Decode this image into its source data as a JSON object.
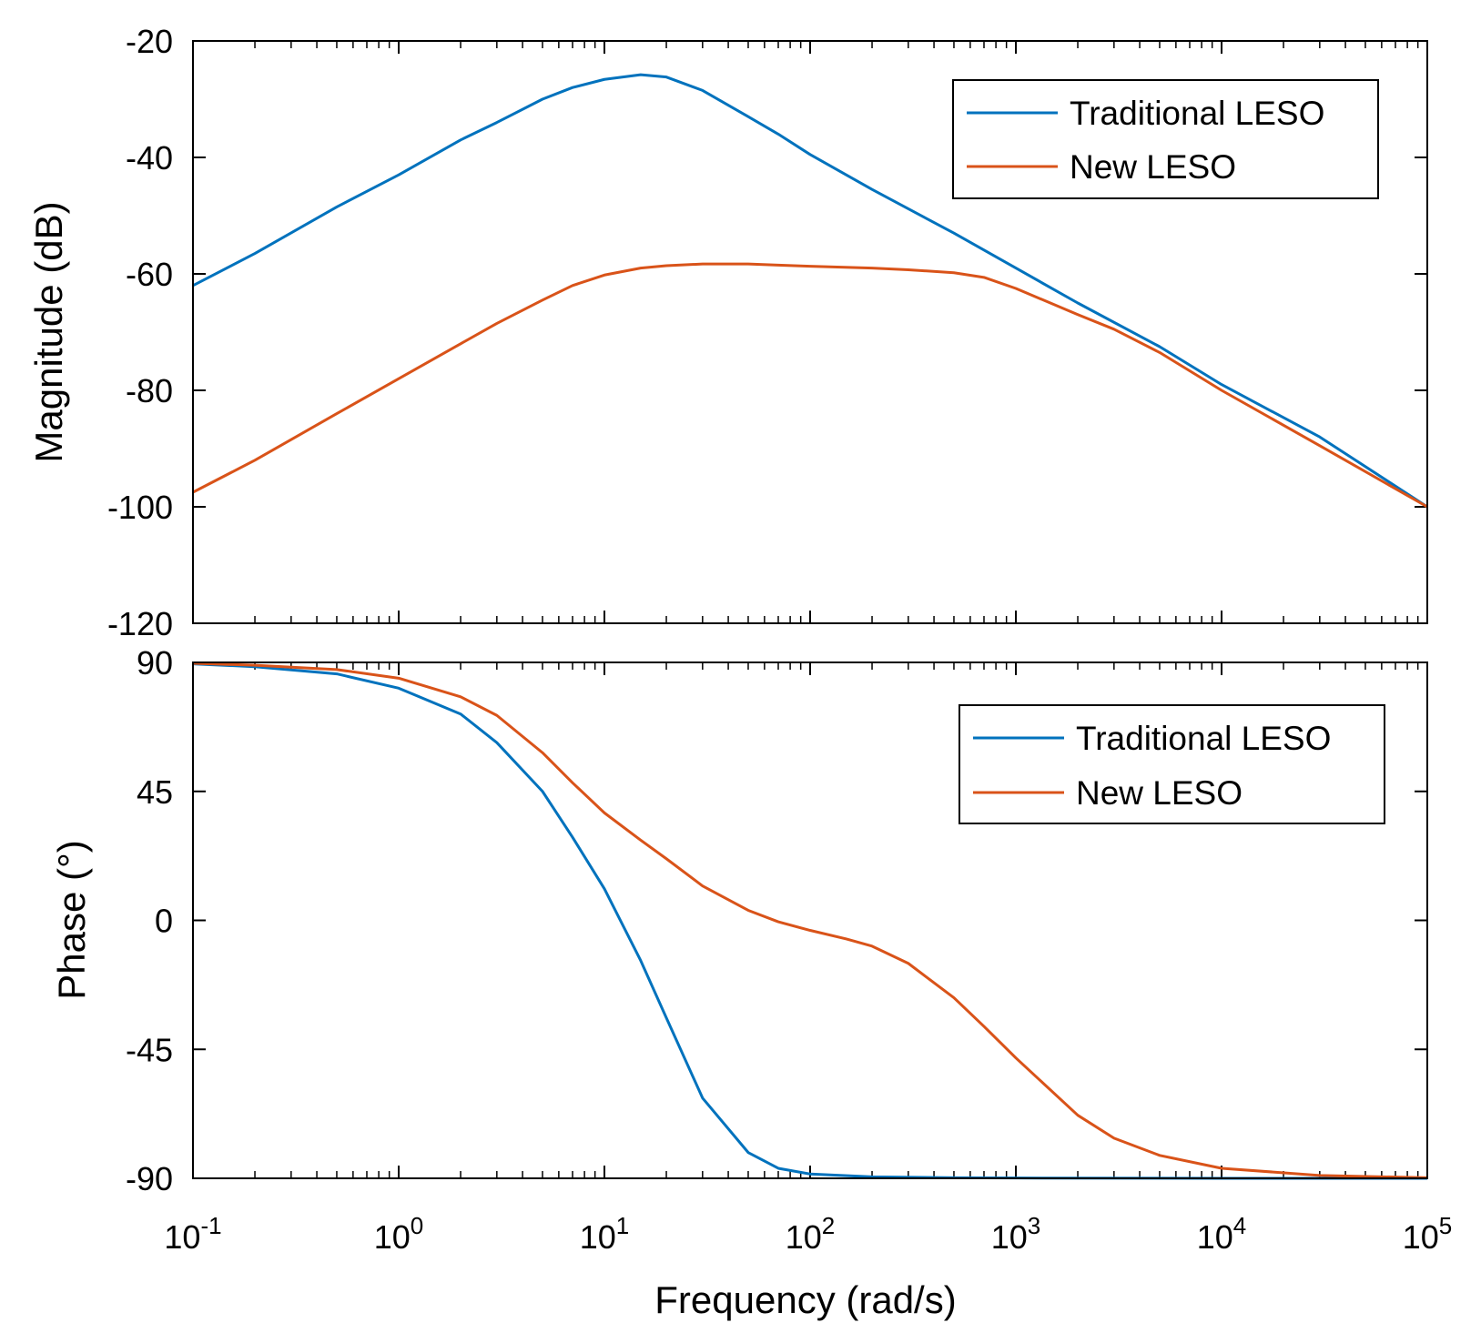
{
  "chart_data": [
    {
      "type": "line",
      "panel": "magnitude",
      "xscale": "log",
      "xlim": [
        0.1,
        100000
      ],
      "ylim": [
        -120,
        -20
      ],
      "yticks": [
        -20,
        -40,
        -60,
        -80,
        -100,
        -120
      ],
      "ytick_labels": [
        "-20",
        "-40",
        "-60",
        "-80",
        "-100",
        "-120"
      ],
      "ylabel": "Magnitude (dB)",
      "xlabel": "",
      "grid": false,
      "legend": "top-right",
      "series": [
        {
          "name": "Traditional LESO",
          "color": "#0072BD",
          "x": [
            0.1,
            0.2,
            0.5,
            1,
            2,
            3,
            5,
            7,
            10,
            15,
            20,
            30,
            50,
            70,
            100,
            200,
            500,
            1000,
            2000,
            5000,
            10000,
            30000,
            100000
          ],
          "y": [
            -62,
            -56.5,
            -48.5,
            -43,
            -37,
            -34,
            -30,
            -28,
            -26.6,
            -25.8,
            -26.2,
            -28.5,
            -33,
            -36,
            -39.5,
            -45.5,
            -53,
            -59,
            -65,
            -72.5,
            -79,
            -88,
            -100
          ]
        },
        {
          "name": "New LESO",
          "color": "#D95319",
          "x": [
            0.1,
            0.2,
            0.5,
            1,
            2,
            3,
            5,
            7,
            10,
            15,
            20,
            30,
            50,
            70,
            100,
            200,
            300,
            500,
            700,
            1000,
            2000,
            3000,
            5000,
            10000,
            30000,
            100000
          ],
          "y": [
            -97.5,
            -92,
            -84,
            -78,
            -72,
            -68.5,
            -64.5,
            -62,
            -60.2,
            -59,
            -58.6,
            -58.3,
            -58.3,
            -58.5,
            -58.7,
            -59,
            -59.3,
            -59.8,
            -60.6,
            -62.5,
            -67,
            -69.5,
            -73.5,
            -80,
            -89.5,
            -100
          ]
        }
      ]
    },
    {
      "type": "line",
      "panel": "phase",
      "xscale": "log",
      "xlim": [
        0.1,
        100000
      ],
      "ylim": [
        -90,
        90
      ],
      "yticks": [
        90,
        45,
        0,
        -45,
        -90
      ],
      "ytick_labels": [
        "90",
        "45",
        "0",
        "-45",
        "-90"
      ],
      "xticks": [
        0.1,
        1,
        10,
        100,
        1000,
        10000,
        100000
      ],
      "xtick_base": "10",
      "xtick_exponents": [
        "-1",
        "0",
        "1",
        "2",
        "3",
        "4",
        "5"
      ],
      "ylabel": "Phase (°)",
      "xlabel": "Frequency  (rad/s)",
      "grid": false,
      "legend": "top-right",
      "series": [
        {
          "name": "Traditional LESO",
          "color": "#0072BD",
          "x": [
            0.1,
            0.2,
            0.5,
            1,
            2,
            3,
            5,
            7,
            10,
            15,
            20,
            30,
            50,
            70,
            100,
            200,
            500,
            1000,
            10000,
            100000
          ],
          "y": [
            89.5,
            88.5,
            86,
            81,
            72,
            62,
            45,
            29,
            11,
            -14,
            -34,
            -62,
            -81,
            -86.5,
            -88.5,
            -89.5,
            -89.8,
            -89.9,
            -90,
            -90
          ]
        },
        {
          "name": "New LESO",
          "color": "#D95319",
          "x": [
            0.1,
            0.2,
            0.5,
            1,
            2,
            3,
            5,
            7,
            10,
            15,
            20,
            30,
            50,
            70,
            100,
            150,
            200,
            300,
            500,
            700,
            1000,
            2000,
            3000,
            5000,
            10000,
            30000,
            100000
          ],
          "y": [
            89.7,
            89,
            87.5,
            84.5,
            78,
            71.5,
            58.5,
            48,
            37.5,
            28,
            21.5,
            12,
            3.5,
            -0.5,
            -3.5,
            -6.5,
            -9,
            -15,
            -27,
            -37,
            -48,
            -68,
            -76,
            -82,
            -86.5,
            -89,
            -89.8
          ]
        }
      ]
    }
  ]
}
